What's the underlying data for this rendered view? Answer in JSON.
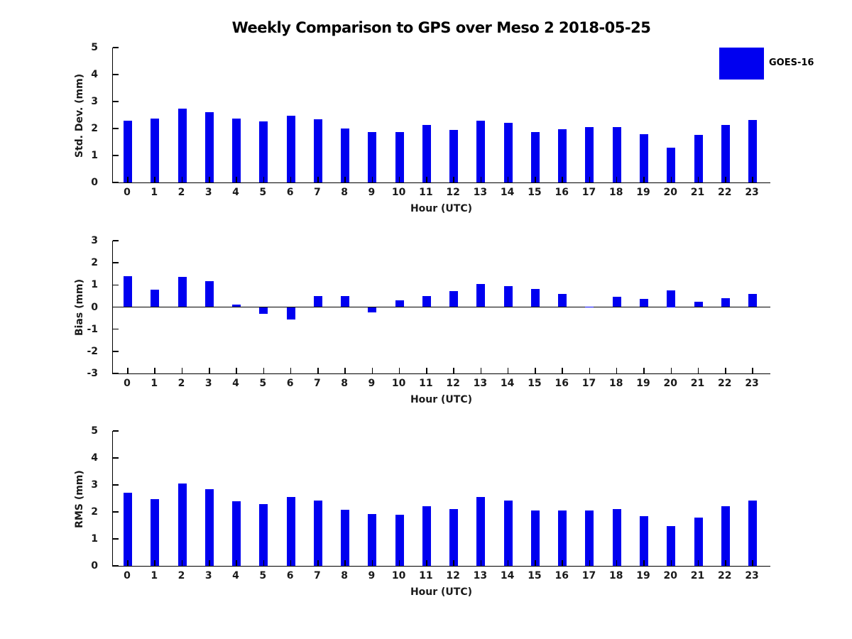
{
  "title": "Weekly Comparison to GPS over Meso 2 2018-05-25",
  "legend": {
    "label": "GOES-16",
    "position": "top-right"
  },
  "colors": {
    "bar": "#0000f0",
    "axis": "#000000",
    "text": "#1a1a1a",
    "background": "#ffffff"
  },
  "chart_data": [
    {
      "type": "bar",
      "name": "std-dev",
      "series_name": "GOES-16",
      "xlabel": "Hour (UTC)",
      "ylabel": "Std. Dev. (mm)",
      "categories": [
        "0",
        "1",
        "2",
        "3",
        "4",
        "5",
        "6",
        "7",
        "8",
        "9",
        "10",
        "11",
        "12",
        "13",
        "14",
        "15",
        "16",
        "17",
        "18",
        "19",
        "20",
        "21",
        "22",
        "23"
      ],
      "values": [
        2.3,
        2.38,
        2.73,
        2.6,
        2.37,
        2.27,
        2.47,
        2.34,
        2.0,
        1.87,
        1.87,
        2.12,
        1.95,
        2.3,
        2.22,
        1.87,
        1.97,
        2.05,
        2.04,
        1.78,
        1.3,
        1.77,
        2.12,
        2.31
      ],
      "ylim": [
        0,
        5
      ],
      "yticks": [
        0,
        1,
        2,
        3,
        4,
        5
      ],
      "grid": false,
      "zero_line": false
    },
    {
      "type": "bar",
      "name": "bias",
      "series_name": "GOES-16",
      "xlabel": "Hour (UTC)",
      "ylabel": "Bias (mm)",
      "categories": [
        "0",
        "1",
        "2",
        "3",
        "4",
        "5",
        "6",
        "7",
        "8",
        "9",
        "10",
        "11",
        "12",
        "13",
        "14",
        "15",
        "16",
        "17",
        "18",
        "19",
        "20",
        "21",
        "22",
        "23"
      ],
      "values": [
        1.4,
        0.78,
        1.37,
        1.18,
        0.12,
        -0.3,
        -0.55,
        0.5,
        0.5,
        -0.25,
        0.3,
        0.5,
        0.73,
        1.05,
        0.95,
        0.83,
        0.6,
        0.02,
        0.45,
        0.36,
        0.75,
        0.25,
        0.41,
        0.6
      ],
      "ylim": [
        -3,
        3
      ],
      "yticks": [
        -3,
        -2,
        -1,
        0,
        1,
        2,
        3
      ],
      "grid": false,
      "zero_line": true
    },
    {
      "type": "bar",
      "name": "rms",
      "series_name": "GOES-16",
      "xlabel": "Hour (UTC)",
      "ylabel": "RMS (mm)",
      "categories": [
        "0",
        "1",
        "2",
        "3",
        "4",
        "5",
        "6",
        "7",
        "8",
        "9",
        "10",
        "11",
        "12",
        "13",
        "14",
        "15",
        "16",
        "17",
        "18",
        "19",
        "20",
        "21",
        "22",
        "23"
      ],
      "values": [
        2.7,
        2.47,
        3.04,
        2.85,
        2.4,
        2.28,
        2.55,
        2.42,
        2.07,
        1.92,
        1.89,
        2.22,
        2.1,
        2.55,
        2.43,
        2.05,
        2.04,
        2.04,
        2.1,
        1.85,
        1.48,
        1.8,
        2.2,
        2.42
      ],
      "ylim": [
        0,
        5
      ],
      "yticks": [
        0,
        1,
        2,
        3,
        4,
        5
      ],
      "grid": false,
      "zero_line": false
    }
  ]
}
